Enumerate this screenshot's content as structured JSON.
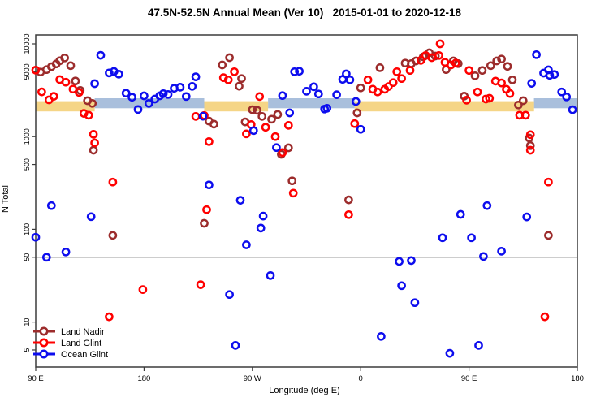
{
  "title": "47.5N-52.5N Annual Mean (Ver 10)   2015-01-01 to 2020-12-18",
  "chart_data": {
    "type": "scatter",
    "title": "47.5N-52.5N Annual Mean (Ver 10)   2015-01-01 to 2020-12-18",
    "xlabel": "Longitude (deg E)",
    "ylabel": "N Total",
    "y_scale": "log",
    "x_axis": {
      "label": "Longitude (deg E)",
      "note": "axis spans 450 degrees eastward from 90E; 90E-180 sector repeated at both ends",
      "tick_positions_deg": [
        90,
        180,
        270,
        360,
        450,
        540
      ],
      "tick_labels": [
        "90 E",
        "180",
        "90 W",
        "0",
        "90 E",
        "180"
      ]
    },
    "y_axis": {
      "label": "N Total",
      "tick_values": [
        10000,
        5000,
        1000,
        500,
        100,
        50,
        10,
        5
      ],
      "range": [
        3.3,
        12500
      ]
    },
    "reference_line_value": 50,
    "reference_line_color": "#7a7a7a",
    "bands": [
      {
        "name": "ocean",
        "color": "#A9BFDC",
        "value_range": [
          2020,
          2590
        ],
        "segments_deg": [
          [
            139,
            230
          ],
          [
            283,
            355
          ],
          [
            504,
            540
          ]
        ]
      },
      {
        "name": "land",
        "color": "#F5D586",
        "value_range": [
          1870,
          2410
        ],
        "segments_deg": [
          [
            90,
            139
          ],
          [
            230,
            283
          ],
          [
            355,
            504
          ]
        ]
      }
    ],
    "series": [
      {
        "name": "Land Nadir",
        "color": "#9C2C2C",
        "points": [
          [
            94,
            4970
          ],
          [
            99,
            5280
          ],
          [
            103,
            5680
          ],
          [
            107,
            6080
          ],
          [
            110,
            6580
          ],
          [
            114,
            7050
          ],
          [
            119,
            5830
          ],
          [
            123,
            3980
          ],
          [
            127,
            3150
          ],
          [
            133,
            2440
          ],
          [
            137,
            2280
          ],
          [
            138,
            713
          ],
          [
            154,
            86
          ],
          [
            230,
            116
          ],
          [
            234,
            1470
          ],
          [
            238,
            1360
          ],
          [
            245,
            5920
          ],
          [
            251,
            7100
          ],
          [
            259,
            3500
          ],
          [
            261,
            4230
          ],
          [
            264,
            1440
          ],
          [
            270,
            1950
          ],
          [
            274,
            1920
          ],
          [
            278,
            1650
          ],
          [
            286,
            1540
          ],
          [
            291,
            1730
          ],
          [
            294,
            644
          ],
          [
            300,
            757
          ],
          [
            303,
            333
          ],
          [
            350,
            208
          ],
          [
            357,
            1800
          ],
          [
            360,
            3350
          ],
          [
            376,
            5530
          ],
          [
            397,
            6200
          ],
          [
            402,
            6130
          ],
          [
            406,
            6550
          ],
          [
            412,
            7240
          ],
          [
            417,
            8010
          ],
          [
            422,
            7390
          ],
          [
            431,
            5280
          ],
          [
            437,
            6550
          ],
          [
            441,
            6130
          ],
          [
            446,
            2730
          ],
          [
            455,
            4530
          ],
          [
            461,
            5170
          ],
          [
            468,
            5830
          ],
          [
            473,
            6550
          ],
          [
            477,
            6860
          ],
          [
            482,
            5720
          ],
          [
            486,
            4090
          ],
          [
            491,
            2190
          ],
          [
            495,
            2440
          ],
          [
            500,
            964
          ],
          [
            501,
            800
          ],
          [
            516,
            86
          ]
        ]
      },
      {
        "name": "Land Glint",
        "color": "#FF0000",
        "points": [
          [
            90,
            5210
          ],
          [
            95,
            3040
          ],
          [
            101,
            2490
          ],
          [
            105,
            2720
          ],
          [
            110,
            4120
          ],
          [
            115,
            3860
          ],
          [
            121,
            3250
          ],
          [
            126,
            2990
          ],
          [
            130,
            1780
          ],
          [
            134,
            1700
          ],
          [
            138,
            1060
          ],
          [
            139,
            855
          ],
          [
            151,
            11.4
          ],
          [
            154,
            323
          ],
          [
            179,
            22.4
          ],
          [
            223,
            1650
          ],
          [
            227,
            25.3
          ],
          [
            230,
            1690
          ],
          [
            232,
            163
          ],
          [
            234,
            883
          ],
          [
            246,
            4320
          ],
          [
            250,
            4090
          ],
          [
            255,
            5010
          ],
          [
            265,
            1070
          ],
          [
            269,
            1350
          ],
          [
            276,
            2700
          ],
          [
            281,
            1260
          ],
          [
            289,
            1000
          ],
          [
            295,
            674
          ],
          [
            300,
            1320
          ],
          [
            304,
            246
          ],
          [
            350,
            144
          ],
          [
            355,
            1380
          ],
          [
            366,
            4090
          ],
          [
            370,
            3240
          ],
          [
            374,
            3030
          ],
          [
            380,
            3240
          ],
          [
            383,
            3460
          ],
          [
            387,
            3820
          ],
          [
            390,
            5010
          ],
          [
            394,
            4230
          ],
          [
            401,
            5170
          ],
          [
            410,
            6640
          ],
          [
            414,
            7500
          ],
          [
            419,
            7100
          ],
          [
            425,
            7500
          ],
          [
            426,
            10000
          ],
          [
            430,
            6330
          ],
          [
            435,
            5920
          ],
          [
            439,
            6200
          ],
          [
            448,
            2470
          ],
          [
            450,
            5170
          ],
          [
            457,
            3030
          ],
          [
            464,
            2540
          ],
          [
            467,
            2590
          ],
          [
            472,
            3960
          ],
          [
            477,
            3790
          ],
          [
            481,
            3240
          ],
          [
            484,
            2920
          ],
          [
            492,
            1700
          ],
          [
            497,
            1700
          ],
          [
            501,
            1050
          ],
          [
            501,
            713
          ],
          [
            516,
            323
          ],
          [
            513,
            11.4
          ]
        ]
      },
      {
        "name": "Ocean Glint",
        "color": "#0D0DEE",
        "points": [
          [
            139,
            3720
          ],
          [
            144,
            7530
          ],
          [
            151,
            4860
          ],
          [
            155,
            5040
          ],
          [
            159,
            4710
          ],
          [
            165,
            2940
          ],
          [
            170,
            2660
          ],
          [
            175,
            1960
          ],
          [
            180,
            2750
          ],
          [
            184,
            2280
          ],
          [
            189,
            2540
          ],
          [
            193,
            2750
          ],
          [
            196,
            2900
          ],
          [
            200,
            2850
          ],
          [
            205,
            3320
          ],
          [
            210,
            3410
          ],
          [
            215,
            2710
          ],
          [
            220,
            3480
          ],
          [
            223,
            4410
          ],
          [
            229,
            1660
          ],
          [
            271,
            1160
          ],
          [
            290,
            762
          ],
          [
            295,
            2770
          ],
          [
            301,
            1800
          ],
          [
            305,
            5010
          ],
          [
            309,
            5070
          ],
          [
            315,
            3080
          ],
          [
            321,
            3450
          ],
          [
            325,
            2880
          ],
          [
            330,
            1980
          ],
          [
            332,
            2020
          ],
          [
            340,
            2830
          ],
          [
            345,
            4140
          ],
          [
            348,
            4740
          ],
          [
            351,
            4090
          ],
          [
            356,
            2390
          ],
          [
            360,
            1200
          ],
          [
            502,
            3750
          ],
          [
            506,
            7640
          ],
          [
            512,
            4840
          ],
          [
            516,
            5250
          ],
          [
            517,
            4580
          ],
          [
            521,
            4680
          ],
          [
            527,
            3030
          ],
          [
            531,
            2680
          ],
          [
            536,
            1950
          ],
          [
            103,
            180
          ],
          [
            136,
            137
          ],
          [
            90,
            82
          ],
          [
            99,
            50
          ],
          [
            115,
            57
          ],
          [
            234,
            301
          ],
          [
            260,
            206
          ],
          [
            279,
            139
          ],
          [
            277,
            103
          ],
          [
            265,
            68
          ],
          [
            251,
            19.8
          ],
          [
            285,
            31.7
          ],
          [
            256,
            5.6
          ],
          [
            443,
            145
          ],
          [
            465,
            180
          ],
          [
            498,
            136
          ],
          [
            428,
            81
          ],
          [
            452,
            81
          ],
          [
            462,
            51
          ],
          [
            477,
            58
          ],
          [
            392,
            45
          ],
          [
            402,
            46
          ],
          [
            394,
            24.7
          ],
          [
            405,
            16.2
          ],
          [
            377,
            7
          ],
          [
            434,
            4.6
          ],
          [
            458,
            5.6
          ]
        ]
      }
    ],
    "legend_position": "bottom-left-inside"
  }
}
